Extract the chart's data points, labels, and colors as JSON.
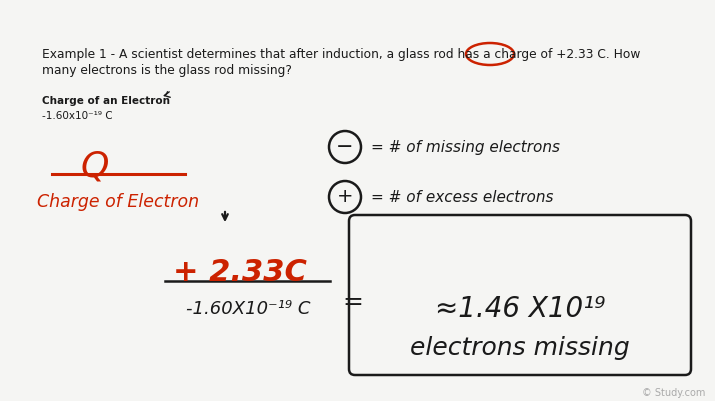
{
  "background_color": "#f5f5f3",
  "example_text_line1": "Example 1 - A scientist determines that after induction, a glass rod has a charge of +2.33 C. How",
  "example_text_line2": "many electrons is the glass rod missing?",
  "highlight_color": "#cc2200",
  "charge_label_bold": "Charge of an Electron",
  "charge_value": "-1.60x10⁻¹⁹ C",
  "fraction_numerator": "Q",
  "fraction_denominator": "Charge of Electron",
  "fraction_color": "#cc2200",
  "numerator_value": "+ 2.33C",
  "denominator_value": "-1.60X10⁻¹⁹ C",
  "result_line1": "≈1.46 X10¹⁹",
  "result_line2": "electrons missing",
  "neg_circle_label": "= # of missing electrons",
  "pos_circle_label": "= # of excess electrons",
  "watermark": "© Study.com"
}
